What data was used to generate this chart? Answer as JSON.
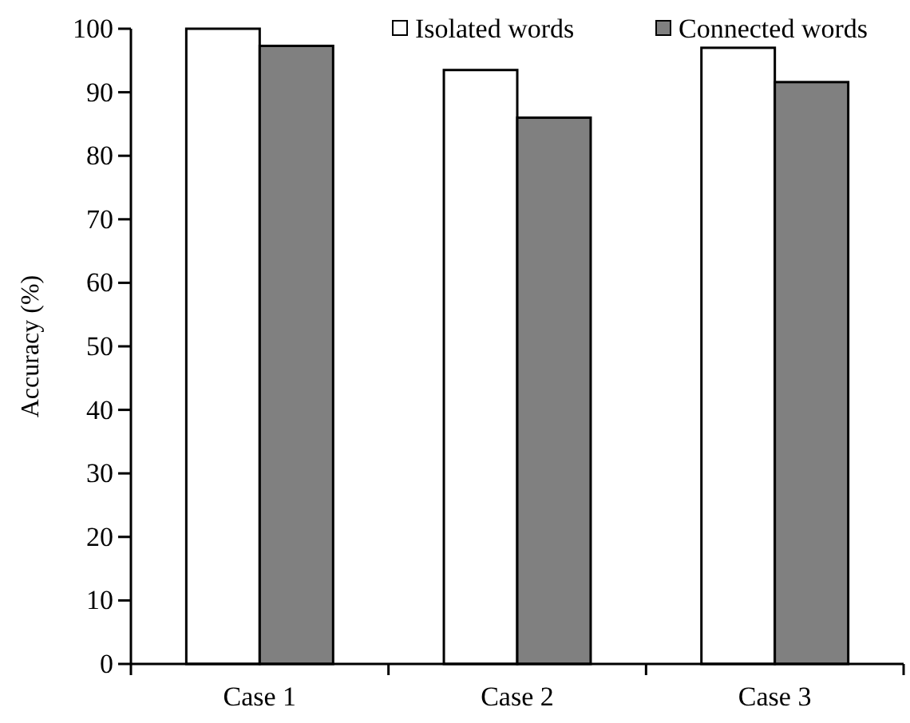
{
  "chart_data": {
    "type": "bar",
    "ylabel": "Accuracy (%)",
    "categories": [
      "Case 1",
      "Case 2",
      "Case 3"
    ],
    "series": [
      {
        "name": "Isolated words",
        "color": "#ffffff",
        "values": [
          100,
          93.5,
          97
        ]
      },
      {
        "name": "Connected words",
        "color": "#808080",
        "values": [
          97.3,
          86,
          91.6
        ]
      }
    ],
    "ylim": [
      0,
      100
    ],
    "yticks": [
      0,
      10,
      20,
      30,
      40,
      50,
      60,
      70,
      80,
      90,
      100
    ],
    "legend": "top right",
    "grid": false
  }
}
